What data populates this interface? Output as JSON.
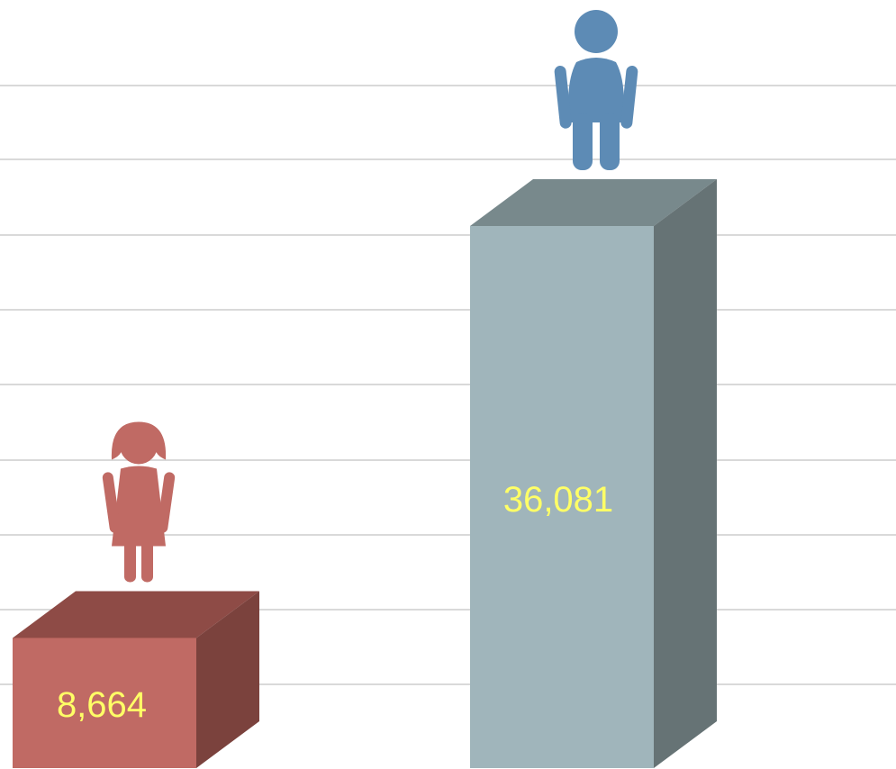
{
  "chart_data": {
    "type": "bar",
    "style": "3d-columns-with-pictograms",
    "categories": [
      "female",
      "male"
    ],
    "values": [
      8664,
      36081
    ],
    "data_labels": [
      "8,664",
      "36,081"
    ],
    "icons": [
      "female-figure-icon",
      "male-figure-icon"
    ],
    "colors": {
      "female": {
        "front": "#c06a64",
        "top": "#8e4b46",
        "side": "#7b423d",
        "icon": "#c06a64"
      },
      "male": {
        "front": "#a0b5bb",
        "top": "#78898c",
        "side": "#667375",
        "icon": "#5d8bb5"
      },
      "label": "#ffff66",
      "grid": "#d9d9d9"
    },
    "grid": true,
    "legend": "none",
    "ylim": [
      0,
      40000
    ]
  }
}
